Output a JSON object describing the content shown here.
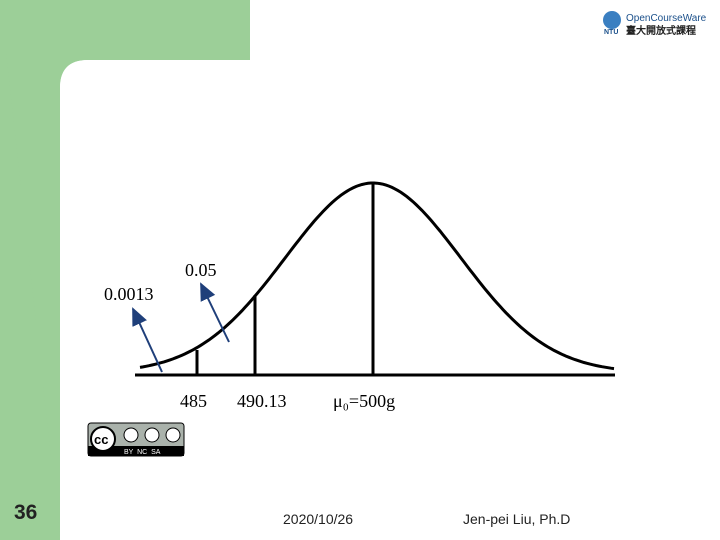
{
  "logo": {
    "line1": "OpenCourseWare",
    "line2": "臺大開放式課程",
    "badge": "NTU"
  },
  "figure": {
    "label_small": "0.0013",
    "label_alpha": "0.05",
    "tick_485": "485",
    "tick_490": "490.13",
    "tick_mu": "μ₀=500g"
  },
  "license": {
    "cc": "cc",
    "terms": "BY  NC  SA"
  },
  "footer": {
    "slide_number": "36",
    "date": "2020/10/26",
    "author": "Jen-pei Liu, Ph.D"
  }
}
